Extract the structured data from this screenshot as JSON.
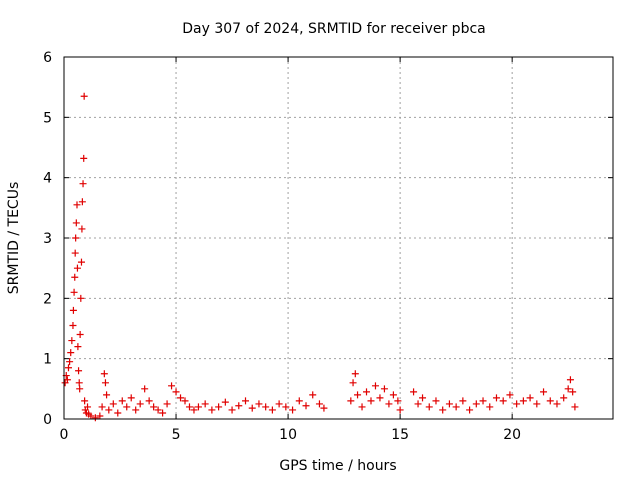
{
  "chart_data": {
    "type": "scatter",
    "title": "Day 307 of 2024, SRMTID for receiver pbca",
    "xlabel": "GPS time / hours",
    "ylabel": "SRMTID / TECUs",
    "xlim": [
      0,
      24.5
    ],
    "ylim": [
      0,
      6
    ],
    "x_ticks": [
      0,
      5,
      10,
      15,
      20
    ],
    "y_ticks": [
      0,
      1,
      2,
      3,
      4,
      5,
      6
    ],
    "grid": true,
    "marker": "+",
    "color": "#e00000",
    "series": [
      {
        "name": "SRMTID",
        "points": [
          [
            0.05,
            0.6
          ],
          [
            0.1,
            0.72
          ],
          [
            0.15,
            0.65
          ],
          [
            0.2,
            0.85
          ],
          [
            0.25,
            0.95
          ],
          [
            0.3,
            1.1
          ],
          [
            0.35,
            1.3
          ],
          [
            0.4,
            1.55
          ],
          [
            0.42,
            1.8
          ],
          [
            0.45,
            2.1
          ],
          [
            0.48,
            2.35
          ],
          [
            0.5,
            2.75
          ],
          [
            0.52,
            3.0
          ],
          [
            0.55,
            3.25
          ],
          [
            0.58,
            3.55
          ],
          [
            0.6,
            2.5
          ],
          [
            0.62,
            1.2
          ],
          [
            0.65,
            0.8
          ],
          [
            0.68,
            0.6
          ],
          [
            0.7,
            0.5
          ],
          [
            0.72,
            1.4
          ],
          [
            0.75,
            2.0
          ],
          [
            0.78,
            2.6
          ],
          [
            0.8,
            3.15
          ],
          [
            0.82,
            3.6
          ],
          [
            0.85,
            3.9
          ],
          [
            0.88,
            4.32
          ],
          [
            0.9,
            5.35
          ],
          [
            0.92,
            0.3
          ],
          [
            0.95,
            0.15
          ],
          [
            1.0,
            0.1
          ],
          [
            1.05,
            0.2
          ],
          [
            1.1,
            0.08
          ],
          [
            1.2,
            0.05
          ],
          [
            1.4,
            0.02
          ],
          [
            1.6,
            0.05
          ],
          [
            1.7,
            0.2
          ],
          [
            1.8,
            0.75
          ],
          [
            1.85,
            0.6
          ],
          [
            1.9,
            0.4
          ],
          [
            2.0,
            0.15
          ],
          [
            2.2,
            0.25
          ],
          [
            2.4,
            0.1
          ],
          [
            2.6,
            0.3
          ],
          [
            2.8,
            0.2
          ],
          [
            3.0,
            0.35
          ],
          [
            3.2,
            0.15
          ],
          [
            3.4,
            0.25
          ],
          [
            3.6,
            0.5
          ],
          [
            3.8,
            0.3
          ],
          [
            4.0,
            0.2
          ],
          [
            4.2,
            0.15
          ],
          [
            4.4,
            0.1
          ],
          [
            4.6,
            0.25
          ],
          [
            4.8,
            0.55
          ],
          [
            5.0,
            0.45
          ],
          [
            5.2,
            0.35
          ],
          [
            5.4,
            0.3
          ],
          [
            5.6,
            0.2
          ],
          [
            5.8,
            0.15
          ],
          [
            6.0,
            0.2
          ],
          [
            6.3,
            0.25
          ],
          [
            6.6,
            0.15
          ],
          [
            6.9,
            0.2
          ],
          [
            7.2,
            0.28
          ],
          [
            7.5,
            0.15
          ],
          [
            7.8,
            0.22
          ],
          [
            8.1,
            0.3
          ],
          [
            8.4,
            0.18
          ],
          [
            8.7,
            0.25
          ],
          [
            9.0,
            0.2
          ],
          [
            9.3,
            0.15
          ],
          [
            9.6,
            0.25
          ],
          [
            9.9,
            0.2
          ],
          [
            10.2,
            0.15
          ],
          [
            10.5,
            0.3
          ],
          [
            10.8,
            0.22
          ],
          [
            11.1,
            0.4
          ],
          [
            11.4,
            0.25
          ],
          [
            11.6,
            0.18
          ],
          [
            12.8,
            0.3
          ],
          [
            12.9,
            0.6
          ],
          [
            13.0,
            0.75
          ],
          [
            13.1,
            0.4
          ],
          [
            13.3,
            0.2
          ],
          [
            13.5,
            0.45
          ],
          [
            13.7,
            0.3
          ],
          [
            13.9,
            0.55
          ],
          [
            14.1,
            0.35
          ],
          [
            14.3,
            0.5
          ],
          [
            14.5,
            0.25
          ],
          [
            14.7,
            0.4
          ],
          [
            14.9,
            0.3
          ],
          [
            15.0,
            0.15
          ],
          [
            15.6,
            0.45
          ],
          [
            15.8,
            0.25
          ],
          [
            16.0,
            0.35
          ],
          [
            16.3,
            0.2
          ],
          [
            16.6,
            0.3
          ],
          [
            16.9,
            0.15
          ],
          [
            17.2,
            0.25
          ],
          [
            17.5,
            0.2
          ],
          [
            17.8,
            0.3
          ],
          [
            18.1,
            0.15
          ],
          [
            18.4,
            0.25
          ],
          [
            18.7,
            0.3
          ],
          [
            19.0,
            0.2
          ],
          [
            19.3,
            0.35
          ],
          [
            19.6,
            0.3
          ],
          [
            19.9,
            0.4
          ],
          [
            20.2,
            0.25
          ],
          [
            20.5,
            0.3
          ],
          [
            20.8,
            0.35
          ],
          [
            21.1,
            0.25
          ],
          [
            21.4,
            0.45
          ],
          [
            21.7,
            0.3
          ],
          [
            22.0,
            0.25
          ],
          [
            22.3,
            0.35
          ],
          [
            22.5,
            0.5
          ],
          [
            22.6,
            0.65
          ],
          [
            22.7,
            0.45
          ],
          [
            22.8,
            0.2
          ]
        ]
      }
    ]
  }
}
